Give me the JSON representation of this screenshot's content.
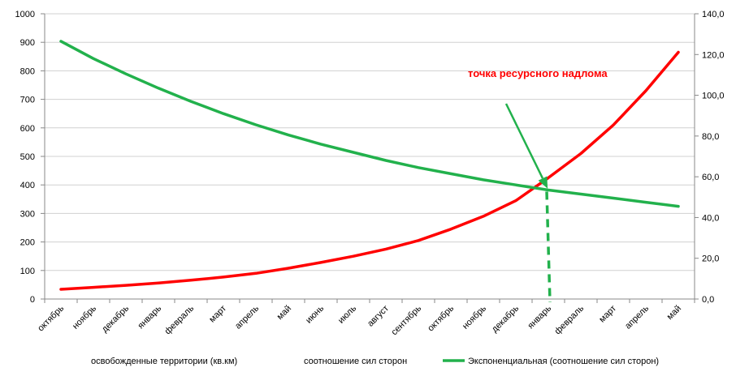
{
  "chart_data": {
    "type": "line",
    "categories": [
      "октябрь",
      "ноябрь",
      "декабрь",
      "январь",
      "февраль",
      "март",
      "апрель",
      "май",
      "июнь",
      "июль",
      "август",
      "сентябрь",
      "октябрь",
      "ноябрь",
      "декабрь",
      "январь",
      "февраль",
      "март",
      "апрель",
      "май"
    ],
    "y_left": {
      "ylim": [
        0,
        1000
      ],
      "ticks": [
        "0",
        "100",
        "200",
        "300",
        "400",
        "500",
        "600",
        "700",
        "800",
        "900",
        "1000"
      ]
    },
    "y_right": {
      "ylim": [
        0,
        140
      ],
      "ticks": [
        "0,0",
        "20,0",
        "40,0",
        "60,0",
        "80,0",
        "100,0",
        "120,0",
        "140,0"
      ]
    },
    "series": [
      {
        "name": "освобожденные территории (кв.км)",
        "axis": "left",
        "color": "#ff0000",
        "values": [
          34,
          41,
          48,
          56,
          66,
          77,
          90,
          108,
          128,
          150,
          175,
          205,
          245,
          290,
          345,
          425,
          510,
          610,
          730,
          865
        ]
      },
      {
        "name": "соотношение сил сторон",
        "axis": "right",
        "color": "#22b14c",
        "values": [
          126.5,
          118.0,
          110.5,
          103.5,
          97.0,
          91.0,
          85.5,
          80.5,
          76.0,
          72.0,
          68.0,
          64.5,
          61.5,
          58.5,
          56.0,
          53.5,
          51.5,
          49.5,
          47.5,
          45.5
        ]
      },
      {
        "name": "Экспоненциальная (соотношение сил сторон)",
        "axis": "right",
        "color": "#22b14c"
      }
    ],
    "annotations": [
      {
        "text": "точка ресурсного надлома",
        "color": "#ff0000",
        "target_category_index": 15
      }
    ]
  }
}
